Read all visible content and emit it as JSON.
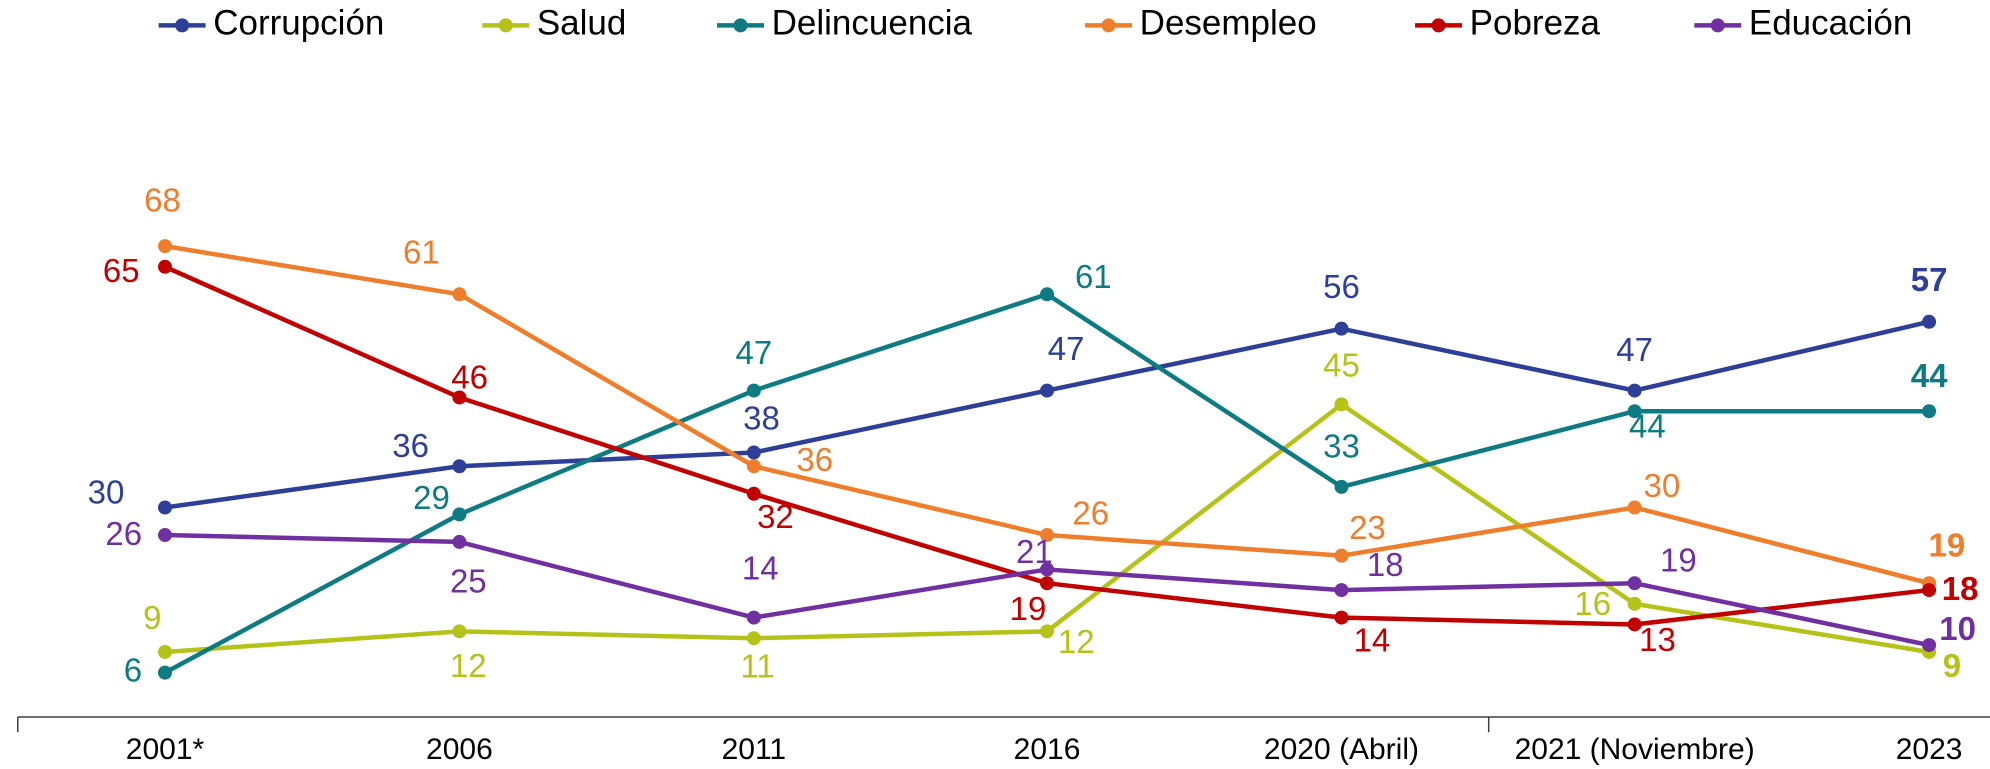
{
  "chart_data": {
    "type": "line",
    "categories": [
      "2001*",
      "2006",
      "2011",
      "2016",
      "2020 (Abril)",
      "2021 (Noviembre)",
      "2023"
    ],
    "series": [
      {
        "name": "Corrupción",
        "color": "#2e3f98",
        "values": [
          30,
          36,
          38,
          47,
          56,
          47,
          57
        ]
      },
      {
        "name": "Salud",
        "color": "#b5c21a",
        "values": [
          9,
          12,
          11,
          12,
          45,
          16,
          9
        ]
      },
      {
        "name": "Delincuencia",
        "color": "#0e7b82",
        "values": [
          6,
          29,
          47,
          61,
          33,
          44,
          44
        ]
      },
      {
        "name": "Desempleo",
        "color": "#ee7d2c",
        "values": [
          68,
          61,
          36,
          26,
          23,
          30,
          19
        ]
      },
      {
        "name": "Pobreza",
        "color": "#c00000",
        "values": [
          65,
          46,
          32,
          19,
          14,
          13,
          18
        ]
      },
      {
        "name": "Educación",
        "color": "#7030a0",
        "values": [
          26,
          25,
          14,
          21,
          18,
          19,
          10
        ]
      }
    ],
    "ylim": [
      0,
      100
    ],
    "legend": "top"
  }
}
